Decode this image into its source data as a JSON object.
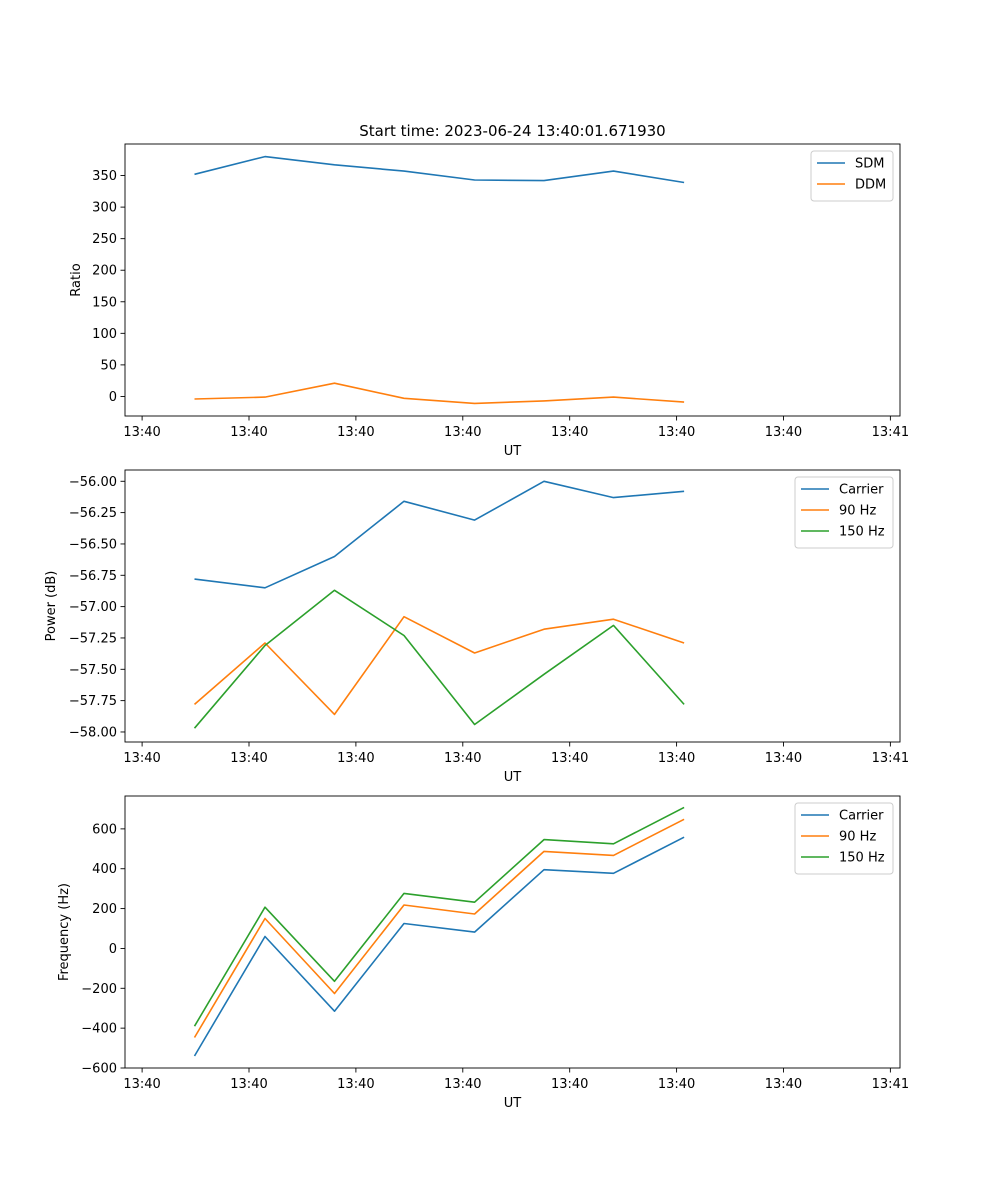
{
  "title": "Start time: 2023-06-24 13:40:01.671930",
  "chart_data": [
    {
      "type": "line",
      "xlabel": "UT",
      "ylabel": "Ratio",
      "xlim": [
        0.0,
        7.25
      ],
      "ylim": [
        -31,
        400
      ],
      "x_ticks": [
        0.16,
        1.16,
        2.16,
        3.16,
        4.16,
        5.16,
        6.16,
        7.16
      ],
      "x_tick_labels": [
        "13:40",
        "13:40",
        "13:40",
        "13:40",
        "13:40",
        "13:40",
        "13:40",
        "13:41"
      ],
      "y_ticks": [
        0,
        50,
        100,
        150,
        200,
        250,
        300,
        350
      ],
      "y_tick_labels": [
        "0",
        "50",
        "100",
        "150",
        "200",
        "250",
        "300",
        "350"
      ],
      "x": [
        0.65,
        1.31,
        1.96,
        2.61,
        3.27,
        3.92,
        4.57,
        5.23
      ],
      "legend_position": "top-right",
      "series": [
        {
          "name": "SDM",
          "color": "#1f77b4",
          "values": [
            352,
            380,
            367,
            357,
            343,
            342,
            357,
            339
          ]
        },
        {
          "name": "DDM",
          "color": "#ff7f0e",
          "values": [
            -4,
            -1,
            21,
            -3,
            -11,
            -7,
            -1,
            -9
          ]
        }
      ]
    },
    {
      "type": "line",
      "xlabel": "UT",
      "ylabel": "Power (dB)",
      "xlim": [
        0.0,
        7.25
      ],
      "ylim": [
        -58.08,
        -55.91
      ],
      "x_ticks": [
        0.16,
        1.16,
        2.16,
        3.16,
        4.16,
        5.16,
        6.16,
        7.16
      ],
      "x_tick_labels": [
        "13:40",
        "13:40",
        "13:40",
        "13:40",
        "13:40",
        "13:40",
        "13:40",
        "13:41"
      ],
      "y_ticks": [
        -58.0,
        -57.75,
        -57.5,
        -57.25,
        -57.0,
        -56.75,
        -56.5,
        -56.25,
        -56.0
      ],
      "y_tick_labels": [
        "−58.00",
        "−57.75",
        "−57.50",
        "−57.25",
        "−57.00",
        "−56.75",
        "−56.50",
        "−56.25",
        "−56.00"
      ],
      "x": [
        0.65,
        1.31,
        1.96,
        2.61,
        3.27,
        3.92,
        4.57,
        5.23
      ],
      "legend_position": "top-right",
      "series": [
        {
          "name": "Carrier",
          "color": "#1f77b4",
          "values": [
            -56.78,
            -56.85,
            -56.6,
            -56.16,
            -56.31,
            -56.0,
            -56.13,
            -56.08
          ]
        },
        {
          "name": "90 Hz",
          "color": "#ff7f0e",
          "values": [
            -57.78,
            -57.29,
            -57.86,
            -57.08,
            -57.37,
            -57.18,
            -57.1,
            -57.29
          ]
        },
        {
          "name": "150 Hz",
          "color": "#2ca02c",
          "values": [
            -57.97,
            -57.31,
            -56.87,
            -57.23,
            -57.94,
            -57.54,
            -57.15,
            -57.78
          ]
        }
      ]
    },
    {
      "type": "line",
      "xlabel": "UT",
      "ylabel": "Frequency (Hz)",
      "xlim": [
        0.0,
        7.25
      ],
      "ylim": [
        -600,
        765
      ],
      "x_ticks": [
        0.16,
        1.16,
        2.16,
        3.16,
        4.16,
        5.16,
        6.16,
        7.16
      ],
      "x_tick_labels": [
        "13:40",
        "13:40",
        "13:40",
        "13:40",
        "13:40",
        "13:40",
        "13:40",
        "13:41"
      ],
      "y_ticks": [
        -600,
        -400,
        -200,
        0,
        200,
        400,
        600
      ],
      "y_tick_labels": [
        "−600",
        "−400",
        "−200",
        "0",
        "200",
        "400",
        "600"
      ],
      "x": [
        0.65,
        1.31,
        1.96,
        2.61,
        3.27,
        3.92,
        4.57,
        5.23
      ],
      "legend_position": "top-right",
      "series": [
        {
          "name": "Carrier",
          "color": "#1f77b4",
          "values": [
            -540,
            60,
            -315,
            125,
            82,
            395,
            377,
            558
          ]
        },
        {
          "name": "90 Hz",
          "color": "#ff7f0e",
          "values": [
            -447,
            150,
            -226,
            218,
            173,
            487,
            467,
            648
          ]
        },
        {
          "name": "150 Hz",
          "color": "#2ca02c",
          "values": [
            -390,
            207,
            -165,
            276,
            232,
            546,
            525,
            708
          ]
        }
      ]
    }
  ]
}
